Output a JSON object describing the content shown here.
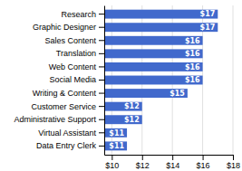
{
  "chart_data": {
    "type": "bar",
    "orientation": "horizontal",
    "categories": [
      "Research",
      "Graphic Designer",
      "Sales Content",
      "Translation",
      "Web Content",
      "Social Media",
      "Writing & Content",
      "Customer Service",
      "Administrative Support",
      "Virtual Assistant",
      "Data Entry Clerk"
    ],
    "values": [
      17,
      17,
      16,
      16,
      16,
      16,
      15,
      12,
      12,
      11,
      11
    ],
    "value_labels": [
      "$17",
      "$17",
      "$16",
      "$16",
      "$16",
      "$16",
      "$15",
      "$12",
      "$12",
      "$11",
      "$11"
    ],
    "data_labels": true,
    "color": "#4169cc",
    "xlim": [
      9.5,
      18.0
    ],
    "xticks": [
      {
        "value": 10,
        "label": "$10"
      },
      {
        "value": 12,
        "label": "$12"
      },
      {
        "value": 14,
        "label": "$14"
      },
      {
        "value": 16,
        "label": "$16"
      },
      {
        "value": 18,
        "label": "$18"
      }
    ],
    "grid": true
  }
}
